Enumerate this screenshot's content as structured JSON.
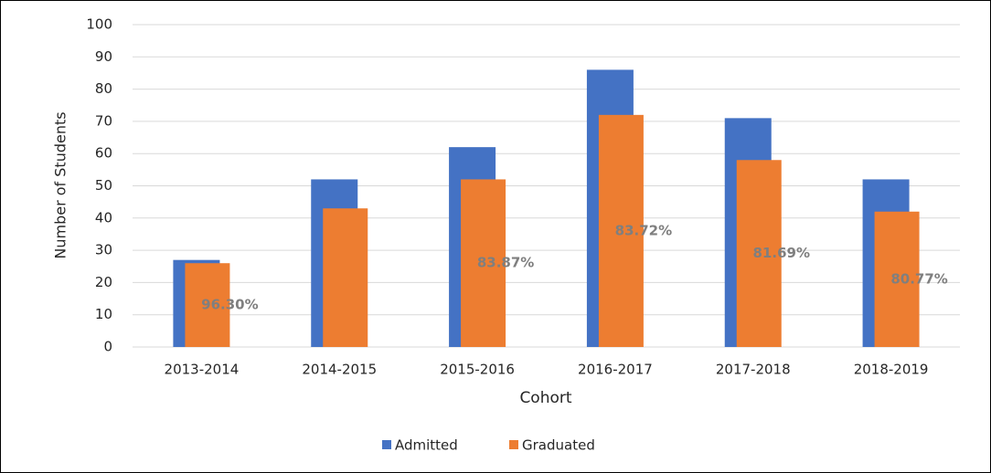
{
  "chart_data": {
    "type": "bar",
    "x_label": "Cohort",
    "y_label": "Number of Students",
    "categories": [
      "2013-2014",
      "2014-2015",
      "2015-2016",
      "2016-2017",
      "2017-2018",
      "2018-2019"
    ],
    "series": [
      {
        "name": "Admitted",
        "color": "#4472c4",
        "values": [
          27,
          52,
          62,
          86,
          71,
          52
        ]
      },
      {
        "name": "Graduated",
        "color": "#ed7d31",
        "values": [
          26,
          43,
          52,
          72,
          58,
          42
        ]
      }
    ],
    "percent_labels": [
      "96.30%",
      null,
      "83.87%",
      "83.72%",
      "81.69%",
      "80.77%"
    ],
    "ylim": [
      0,
      100
    ],
    "yticks": [
      0,
      10,
      20,
      30,
      40,
      50,
      60,
      70,
      80,
      90,
      100
    ],
    "grid": true,
    "legend": "bottom"
  }
}
